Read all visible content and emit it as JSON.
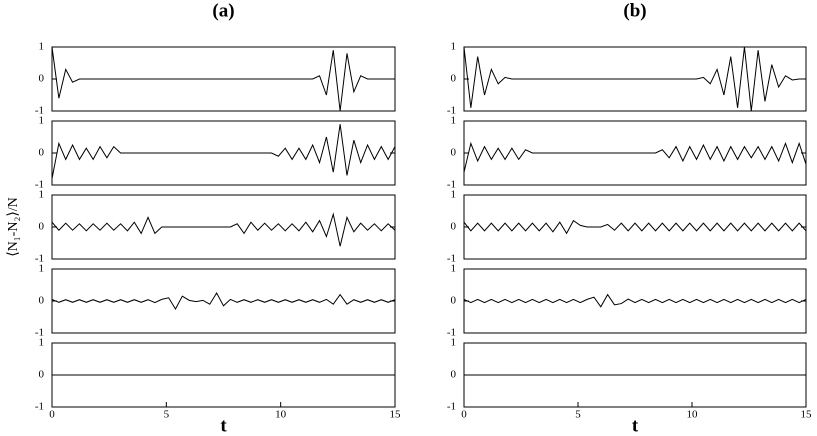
{
  "ylabel": "⟨N₁-N₂⟩/N",
  "chart_data": [
    {
      "type": "line",
      "title": "(a)",
      "xlim": [
        0,
        15
      ],
      "ylim": [
        -1,
        1
      ],
      "yticks": [
        -1,
        0,
        1
      ],
      "color": "#000000",
      "x": [
        0,
        0.3,
        0.6,
        0.9,
        1.2,
        1.5,
        1.8,
        2.1,
        2.4,
        2.7,
        3,
        3.3,
        3.6,
        3.9,
        4.2,
        4.5,
        4.8,
        5.1,
        5.4,
        5.7,
        6,
        6.3,
        6.6,
        6.9,
        7.2,
        7.5,
        7.8,
        8.1,
        8.4,
        8.7,
        9,
        9.3,
        9.6,
        9.9,
        10.2,
        10.5,
        10.8,
        11.1,
        11.4,
        11.7,
        12,
        12.3,
        12.6,
        12.9,
        13.2,
        13.5,
        13.8,
        14.1,
        14.4,
        14.7,
        15
      ],
      "values": [
        1,
        -0.6,
        0.3,
        -0.1,
        0,
        0,
        0,
        0,
        0,
        0,
        0,
        0,
        0,
        0,
        0,
        0,
        0,
        0,
        0,
        0,
        0,
        0,
        0,
        0,
        0,
        0,
        0,
        0,
        0,
        0,
        0,
        0,
        0,
        0,
        0,
        0,
        0,
        0,
        0,
        0.1,
        -0.5,
        0.9,
        -1,
        0.8,
        -0.4,
        0.1,
        0,
        0,
        0,
        0,
        0
      ]
    },
    {
      "type": "line",
      "xlim": [
        0,
        15
      ],
      "ylim": [
        -1,
        1
      ],
      "yticks": [
        -1,
        0,
        1
      ],
      "color": "#000000",
      "x": [
        0,
        0.3,
        0.6,
        0.9,
        1.2,
        1.5,
        1.8,
        2.1,
        2.4,
        2.7,
        3,
        3.3,
        3.6,
        3.9,
        4.2,
        4.5,
        4.8,
        5.1,
        5.4,
        5.7,
        6,
        6.3,
        6.6,
        6.9,
        7.2,
        7.5,
        7.8,
        8.1,
        8.4,
        8.7,
        9,
        9.3,
        9.6,
        9.9,
        10.2,
        10.5,
        10.8,
        11.1,
        11.4,
        11.7,
        12,
        12.3,
        12.6,
        12.9,
        13.2,
        13.5,
        13.8,
        14.1,
        14.4,
        14.7,
        15
      ],
      "values": [
        -0.8,
        0.3,
        -0.2,
        0.25,
        -0.2,
        0.15,
        -0.2,
        0.2,
        -0.15,
        0.2,
        0,
        0,
        0,
        0,
        0,
        0,
        0,
        0,
        0,
        0,
        0,
        0,
        0,
        0,
        0,
        0,
        0,
        0,
        0,
        0,
        0,
        0,
        0,
        -0.1,
        0.15,
        -0.2,
        0.15,
        -0.2,
        0.25,
        -0.3,
        0.5,
        -0.6,
        0.9,
        -0.7,
        0.4,
        -0.3,
        0.25,
        -0.2,
        0.2,
        -0.2,
        0.2
      ]
    },
    {
      "type": "line",
      "xlim": [
        0,
        15
      ],
      "ylim": [
        -1,
        1
      ],
      "yticks": [
        -1,
        0,
        1
      ],
      "color": "#000000",
      "x": [
        0,
        0.3,
        0.6,
        0.9,
        1.2,
        1.5,
        1.8,
        2.1,
        2.4,
        2.7,
        3,
        3.3,
        3.6,
        3.9,
        4.2,
        4.5,
        4.8,
        5.1,
        5.4,
        5.7,
        6,
        6.3,
        6.6,
        6.9,
        7.2,
        7.5,
        7.8,
        8.1,
        8.4,
        8.7,
        9,
        9.3,
        9.6,
        9.9,
        10.2,
        10.5,
        10.8,
        11.1,
        11.4,
        11.7,
        12,
        12.3,
        12.6,
        12.9,
        13.2,
        13.5,
        13.8,
        14.1,
        14.4,
        14.7,
        15
      ],
      "values": [
        0.15,
        -0.1,
        0.12,
        -0.1,
        0.1,
        -0.12,
        0.1,
        -0.1,
        0.12,
        -0.1,
        0.1,
        -0.12,
        0.15,
        -0.2,
        0.3,
        -0.2,
        0,
        0,
        0,
        0,
        0,
        0,
        0,
        0,
        0,
        0,
        0,
        0.1,
        -0.2,
        0.15,
        -0.1,
        0.12,
        -0.1,
        0.1,
        -0.12,
        0.1,
        -0.12,
        0.15,
        -0.15,
        0.2,
        -0.3,
        0.4,
        -0.6,
        0.3,
        -0.15,
        0.12,
        -0.1,
        0.1,
        -0.12,
        0.1,
        -0.1
      ]
    },
    {
      "type": "line",
      "xlim": [
        0,
        15
      ],
      "ylim": [
        -1,
        1
      ],
      "yticks": [
        -1,
        0,
        1
      ],
      "color": "#000000",
      "x": [
        0,
        0.3,
        0.6,
        0.9,
        1.2,
        1.5,
        1.8,
        2.1,
        2.4,
        2.7,
        3,
        3.3,
        3.6,
        3.9,
        4.2,
        4.5,
        4.8,
        5.1,
        5.4,
        5.7,
        6,
        6.3,
        6.6,
        6.9,
        7.2,
        7.5,
        7.8,
        8.1,
        8.4,
        8.7,
        9,
        9.3,
        9.6,
        9.9,
        10.2,
        10.5,
        10.8,
        11.1,
        11.4,
        11.7,
        12,
        12.3,
        12.6,
        12.9,
        13.2,
        13.5,
        13.8,
        14.1,
        14.4,
        14.7,
        15
      ],
      "values": [
        0.05,
        -0.04,
        0.04,
        -0.04,
        0.04,
        -0.04,
        0.04,
        -0.04,
        0.04,
        -0.04,
        0.04,
        -0.04,
        0.04,
        -0.04,
        0.04,
        -0.05,
        0.05,
        0.1,
        -0.25,
        0.15,
        0.02,
        -0.02,
        0.02,
        -0.1,
        0.25,
        -0.15,
        0.05,
        -0.04,
        0.04,
        -0.04,
        0.04,
        -0.04,
        0.04,
        -0.04,
        0.04,
        -0.04,
        0.04,
        -0.04,
        0.04,
        -0.04,
        0.05,
        -0.1,
        0.2,
        -0.1,
        0.04,
        -0.04,
        0.04,
        -0.04,
        0.04,
        -0.04,
        0.04
      ]
    },
    {
      "type": "line",
      "xlabel": "t",
      "xlim": [
        0,
        15
      ],
      "ylim": [
        -1,
        1
      ],
      "yticks": [
        -1,
        0,
        1
      ],
      "xticks": [
        0,
        5,
        10,
        15
      ],
      "color": "#000000",
      "x": [
        0,
        15
      ],
      "values": [
        0,
        0
      ]
    },
    {
      "type": "line",
      "title": "(b)",
      "xlim": [
        0,
        15
      ],
      "ylim": [
        -1,
        1
      ],
      "yticks": [
        -1,
        0,
        1
      ],
      "color": "#000000",
      "x": [
        0,
        0.3,
        0.6,
        0.9,
        1.2,
        1.5,
        1.8,
        2.1,
        2.4,
        2.7,
        3,
        3.3,
        3.6,
        3.9,
        4.2,
        4.5,
        4.8,
        5.1,
        5.4,
        5.7,
        6,
        6.3,
        6.6,
        6.9,
        7.2,
        7.5,
        7.8,
        8.1,
        8.4,
        8.7,
        9,
        9.3,
        9.6,
        9.9,
        10.2,
        10.5,
        10.8,
        11.1,
        11.4,
        11.7,
        12,
        12.3,
        12.6,
        12.9,
        13.2,
        13.5,
        13.8,
        14.1,
        14.4,
        14.7,
        15
      ],
      "values": [
        1,
        -0.9,
        0.7,
        -0.5,
        0.3,
        -0.15,
        0.05,
        0,
        0,
        0,
        0,
        0,
        0,
        0,
        0,
        0,
        0,
        0,
        0,
        0,
        0,
        0,
        0,
        0,
        0,
        0,
        0,
        0,
        0,
        0,
        0,
        0,
        0,
        0,
        0,
        0.05,
        -0.15,
        0.3,
        -0.5,
        0.7,
        -0.9,
        1,
        -1,
        0.9,
        -0.7,
        0.45,
        -0.25,
        0.1,
        -0.03,
        0,
        0
      ]
    },
    {
      "type": "line",
      "xlim": [
        0,
        15
      ],
      "ylim": [
        -1,
        1
      ],
      "yticks": [
        -1,
        0,
        1
      ],
      "color": "#000000",
      "x": [
        0,
        0.3,
        0.6,
        0.9,
        1.2,
        1.5,
        1.8,
        2.1,
        2.4,
        2.7,
        3,
        3.3,
        3.6,
        3.9,
        4.2,
        4.5,
        4.8,
        5.1,
        5.4,
        5.7,
        6,
        6.3,
        6.6,
        6.9,
        7.2,
        7.5,
        7.8,
        8.1,
        8.4,
        8.7,
        9,
        9.3,
        9.6,
        9.9,
        10.2,
        10.5,
        10.8,
        11.1,
        11.4,
        11.7,
        12,
        12.3,
        12.6,
        12.9,
        13.2,
        13.5,
        13.8,
        14.1,
        14.4,
        14.7,
        15
      ],
      "values": [
        -0.6,
        0.3,
        -0.25,
        0.2,
        -0.2,
        0.15,
        -0.2,
        0.15,
        -0.2,
        0.1,
        0,
        0,
        0,
        0,
        0,
        0,
        0,
        0,
        0,
        0,
        0,
        0,
        0,
        0,
        0,
        0,
        0,
        0,
        0,
        0.1,
        -0.15,
        0.2,
        -0.25,
        0.2,
        -0.2,
        0.25,
        -0.2,
        0.2,
        -0.25,
        0.2,
        -0.2,
        0.2,
        -0.15,
        0.2,
        -0.2,
        0.2,
        -0.25,
        0.3,
        -0.3,
        0.3,
        -0.35
      ]
    },
    {
      "type": "line",
      "xlim": [
        0,
        15
      ],
      "ylim": [
        -1,
        1
      ],
      "yticks": [
        -1,
        0,
        1
      ],
      "color": "#000000",
      "x": [
        0,
        0.3,
        0.6,
        0.9,
        1.2,
        1.5,
        1.8,
        2.1,
        2.4,
        2.7,
        3,
        3.3,
        3.6,
        3.9,
        4.2,
        4.5,
        4.8,
        5.1,
        5.4,
        5.7,
        6,
        6.3,
        6.6,
        6.9,
        7.2,
        7.5,
        7.8,
        8.1,
        8.4,
        8.7,
        9,
        9.3,
        9.6,
        9.9,
        10.2,
        10.5,
        10.8,
        11.1,
        11.4,
        11.7,
        12,
        12.3,
        12.6,
        12.9,
        13.2,
        13.5,
        13.8,
        14.1,
        14.4,
        14.7,
        15
      ],
      "values": [
        0.15,
        -0.12,
        0.12,
        -0.12,
        0.12,
        -0.12,
        0.12,
        -0.12,
        0.12,
        -0.12,
        0.12,
        -0.12,
        0.12,
        -0.15,
        0.15,
        -0.2,
        0.2,
        0.05,
        0,
        0,
        0,
        0.08,
        -0.1,
        0.12,
        -0.12,
        0.12,
        -0.12,
        0.12,
        -0.12,
        0.12,
        -0.12,
        0.12,
        -0.12,
        0.12,
        -0.12,
        0.12,
        -0.12,
        0.12,
        -0.12,
        0.12,
        -0.12,
        0.12,
        -0.12,
        0.12,
        -0.12,
        0.12,
        -0.12,
        0.12,
        -0.12,
        0.12,
        -0.12
      ]
    },
    {
      "type": "line",
      "xlim": [
        0,
        15
      ],
      "ylim": [
        -1,
        1
      ],
      "yticks": [
        -1,
        0,
        1
      ],
      "color": "#000000",
      "x": [
        0,
        0.3,
        0.6,
        0.9,
        1.2,
        1.5,
        1.8,
        2.1,
        2.4,
        2.7,
        3,
        3.3,
        3.6,
        3.9,
        4.2,
        4.5,
        4.8,
        5.1,
        5.4,
        5.7,
        6,
        6.3,
        6.6,
        6.9,
        7.2,
        7.5,
        7.8,
        8.1,
        8.4,
        8.7,
        9,
        9.3,
        9.6,
        9.9,
        10.2,
        10.5,
        10.8,
        11.1,
        11.4,
        11.7,
        12,
        12.3,
        12.6,
        12.9,
        13.2,
        13.5,
        13.8,
        14.1,
        14.4,
        14.7,
        15
      ],
      "values": [
        0.05,
        -0.05,
        0.05,
        -0.05,
        0.05,
        -0.05,
        0.05,
        -0.05,
        0.05,
        -0.05,
        0.05,
        -0.05,
        0.05,
        -0.05,
        0.05,
        -0.05,
        0.05,
        -0.05,
        0.05,
        0.12,
        -0.18,
        0.2,
        -0.12,
        -0.08,
        0.06,
        -0.05,
        0.05,
        -0.05,
        0.05,
        -0.05,
        0.05,
        -0.05,
        0.05,
        -0.05,
        0.05,
        -0.05,
        0.05,
        -0.05,
        0.05,
        -0.05,
        0.05,
        -0.05,
        0.05,
        -0.05,
        0.05,
        -0.05,
        0.05,
        -0.05,
        0.05,
        -0.05,
        0.05
      ]
    },
    {
      "type": "line",
      "xlabel": "t",
      "xlim": [
        0,
        15
      ],
      "ylim": [
        -1,
        1
      ],
      "yticks": [
        -1,
        0,
        1
      ],
      "xticks": [
        0,
        5,
        10,
        15
      ],
      "color": "#000000",
      "x": [
        0,
        15
      ],
      "values": [
        0,
        0
      ]
    }
  ]
}
